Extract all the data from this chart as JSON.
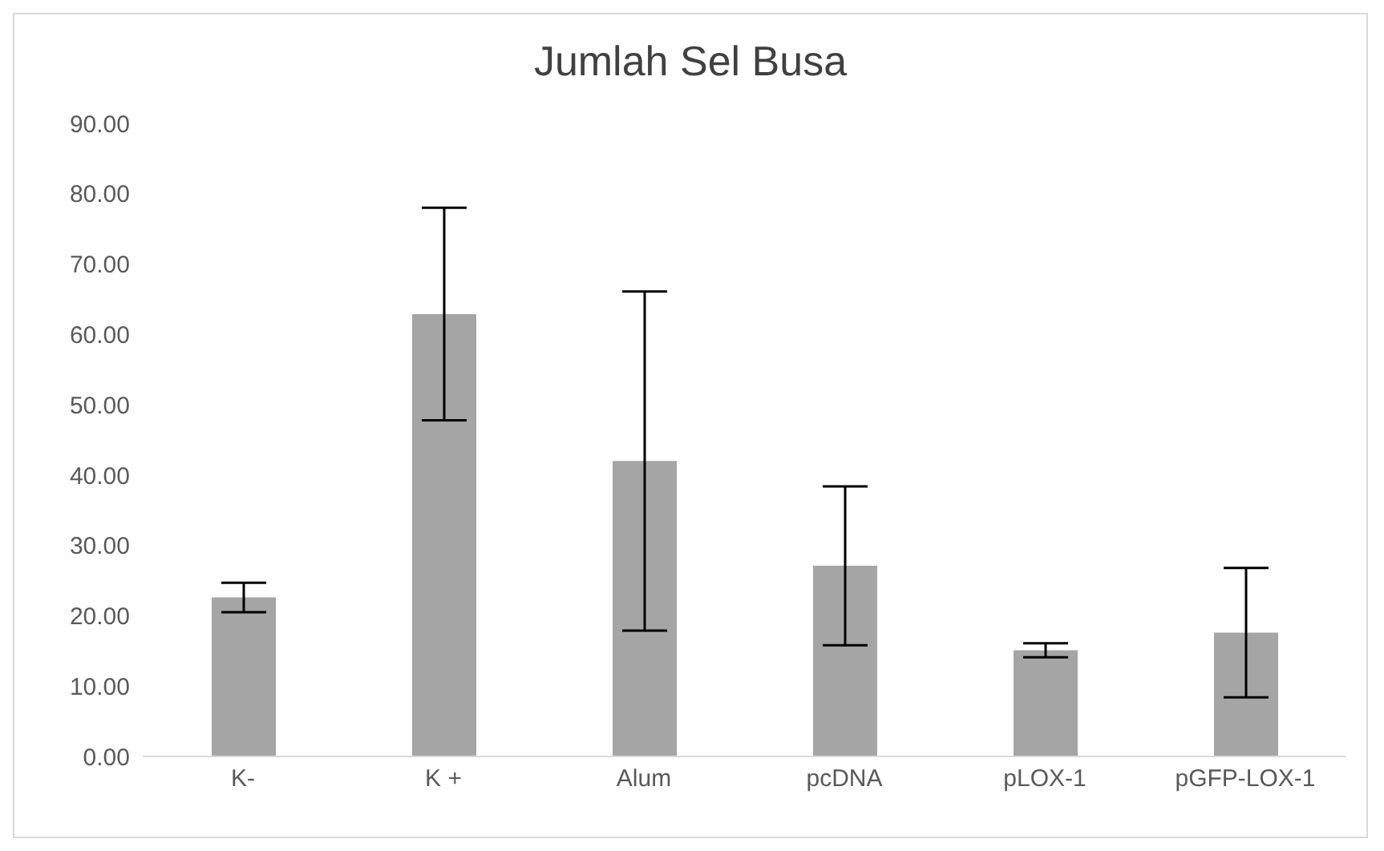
{
  "chart_data": {
    "type": "bar",
    "title": "Jumlah Sel Busa",
    "categories": [
      "K-",
      "K +",
      "Alum",
      "pcDNA",
      "pLOX-1",
      "pGFP-LOX-1"
    ],
    "values": [
      22.6,
      62.9,
      42.0,
      27.1,
      15.1,
      17.6
    ],
    "errors": [
      2.1,
      15.1,
      24.1,
      11.3,
      1.0,
      9.2
    ],
    "color": "#a5a5a5",
    "ylim": [
      0,
      90
    ],
    "yticks": [
      {
        "value": 0,
        "label": "0.00"
      },
      {
        "value": 10,
        "label": "10.00"
      },
      {
        "value": 20,
        "label": "20.00"
      },
      {
        "value": 30,
        "label": "30.00"
      },
      {
        "value": 40,
        "label": "40.00"
      },
      {
        "value": 50,
        "label": "50.00"
      },
      {
        "value": 60,
        "label": "60.00"
      },
      {
        "value": 70,
        "label": "70.00"
      },
      {
        "value": 80,
        "label": "80.00"
      },
      {
        "value": 90,
        "label": "90.00"
      }
    ]
  }
}
